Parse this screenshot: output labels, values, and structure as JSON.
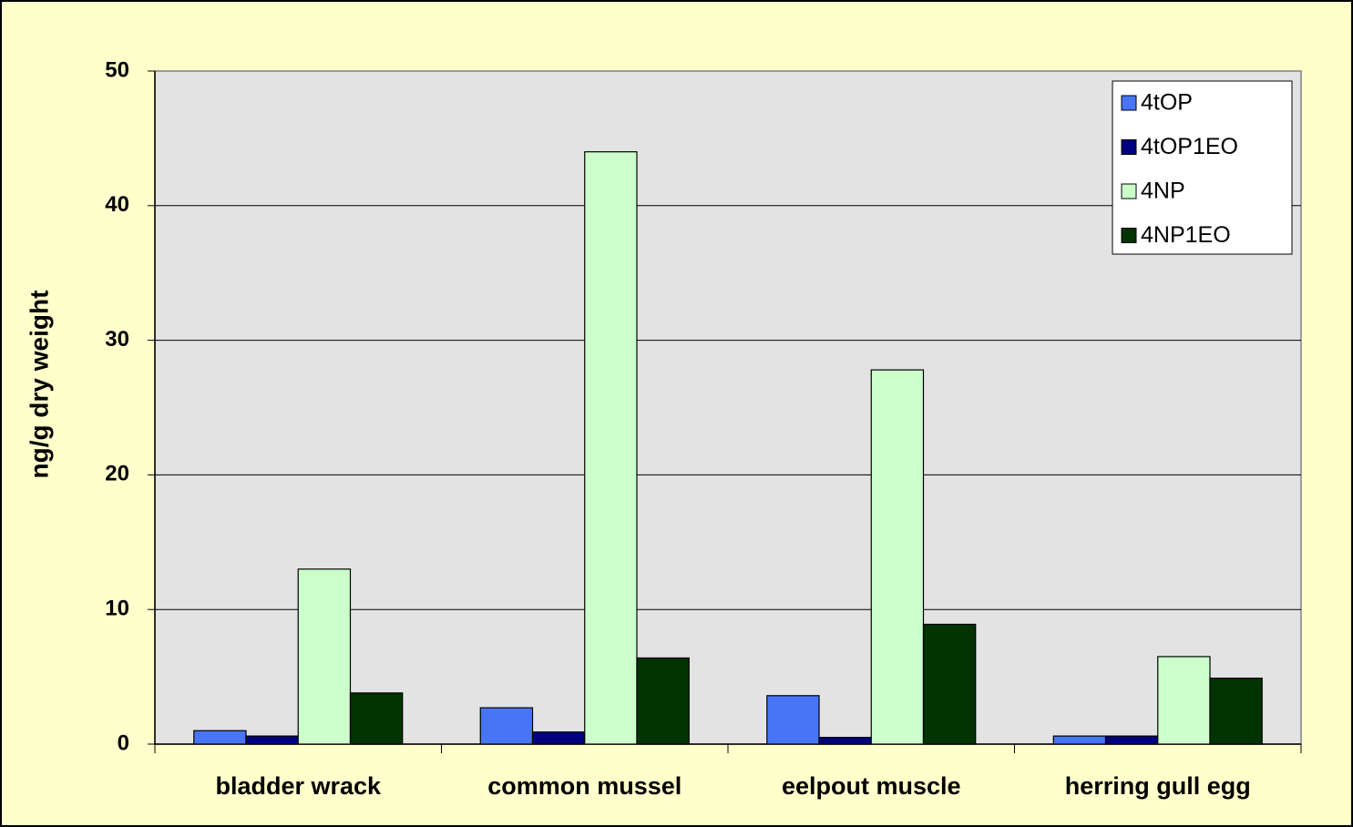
{
  "chart_data": {
    "type": "bar",
    "ylabel": "ng/g dry weight",
    "categories": [
      "bladder wrack",
      "common mussel",
      "eelpout muscle",
      "herring gull egg"
    ],
    "series": [
      {
        "name": "4tOP",
        "color": "#4775f5",
        "values": [
          1.0,
          2.7,
          3.6,
          0.6
        ]
      },
      {
        "name": "4tOP1EO",
        "color": "#000080",
        "values": [
          0.6,
          0.9,
          0.5,
          0.6
        ]
      },
      {
        "name": "4NP",
        "color": "#ccffcc",
        "values": [
          13.0,
          44.0,
          27.8,
          6.5
        ]
      },
      {
        "name": "4NP1EO",
        "color": "#003300",
        "values": [
          3.8,
          6.4,
          8.9,
          4.9
        ]
      }
    ],
    "ylim": [
      0,
      50
    ],
    "yticks": [
      0,
      10,
      20,
      30,
      40,
      50
    ],
    "grid": true,
    "legend": "upper right"
  }
}
